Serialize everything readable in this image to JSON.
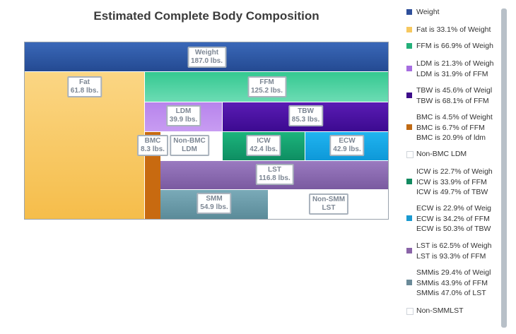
{
  "title": "Estimated Complete Body Composition",
  "chart_data": {
    "type": "treemap",
    "units": "lbs.",
    "blocks": [
      {
        "name": "Weight",
        "value": "187.0 lbs.",
        "color": "#2e5aa8"
      },
      {
        "name": "Fat",
        "value": "61.8 lbs.",
        "color": "#f8c860"
      },
      {
        "name": "FFM",
        "value": "125.2 lbs.",
        "color": "#2cc08a"
      },
      {
        "name": "LDM",
        "value": "39.9 lbs.",
        "color": "#b07ee8"
      },
      {
        "name": "TBW",
        "value": "85.3 lbs.",
        "color": "#4a0fa0"
      },
      {
        "name": "BMC",
        "value": "8.3 lbs.",
        "color": "#c86a10"
      },
      {
        "name": "Non-BMC",
        "value": "LDM",
        "color": "#ffffff"
      },
      {
        "name": "ICW",
        "value": "42.4 lbs.",
        "color": "#14a070"
      },
      {
        "name": "ECW",
        "value": "42.9 lbs.",
        "color": "#14a8e8"
      },
      {
        "name": "LST",
        "value": "116.8 lbs.",
        "color": "#8a68b0"
      },
      {
        "name": "SMM",
        "value": "54.9 lbs.",
        "color": "#6a9aa8"
      },
      {
        "name": "Non-SMM",
        "value": "LST",
        "color": "#ffffff"
      }
    ]
  },
  "legend": [
    {
      "color": "#2e4f9a",
      "lines": [
        "Weight"
      ]
    },
    {
      "color": "#f6c85f",
      "lines": [
        "Fat is 33.1% of Weight"
      ]
    },
    {
      "color": "#24b07a",
      "lines": [
        "FFM is 66.9% of Weigh"
      ]
    },
    {
      "color": "#a66ee0",
      "lines": [
        "LDM is 21.3% of Weigh",
        "LDM is 31.9% of FFM"
      ]
    },
    {
      "color": "#3d0d8a",
      "lines": [
        "TBW is 45.6% of Weigl",
        "TBW is 68.1% of FFM"
      ]
    },
    {
      "color": "#c06a14",
      "lines": [
        "BMC is 4.5% of Weight",
        "BMC is 6.7% of FFM",
        "BMC is 20.9% of ldm"
      ]
    },
    {
      "color": "#ffffff",
      "lines": [
        "Non-BMC LDM"
      ]
    },
    {
      "color": "#128a60",
      "lines": [
        "ICW is 22.7% of Weigh",
        "ICW is 33.9% of FFM",
        "ICW is 49.7% of TBW"
      ]
    },
    {
      "color": "#1a9ad0",
      "lines": [
        "ECW is 22.9% of Weig",
        "ECW is 34.2% of FFM",
        "ECW is 50.3% of TBW"
      ]
    },
    {
      "color": "#8a64a8",
      "lines": [
        "LST is 62.5% of Weigh",
        "LST is 93.3% of FFM"
      ]
    },
    {
      "color": "#6a8a98",
      "lines": [
        "SMMis 29.4% of Weigl",
        "SMMis 43.9% of FFM",
        "SMMis 47.0% of LST"
      ]
    },
    {
      "color": "#ffffff",
      "lines": [
        "Non-SMMLST"
      ]
    }
  ]
}
